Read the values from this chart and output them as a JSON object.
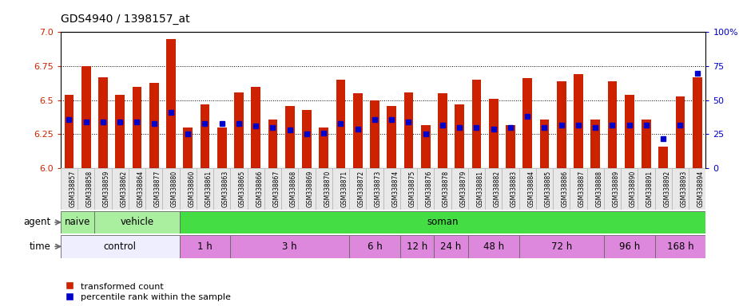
{
  "title": "GDS4940 / 1398157_at",
  "samples": [
    "GSM338857",
    "GSM338858",
    "GSM338859",
    "GSM338862",
    "GSM338864",
    "GSM338877",
    "GSM338880",
    "GSM338860",
    "GSM338861",
    "GSM338863",
    "GSM338865",
    "GSM338866",
    "GSM338867",
    "GSM338868",
    "GSM338869",
    "GSM338870",
    "GSM338871",
    "GSM338872",
    "GSM338873",
    "GSM338874",
    "GSM338875",
    "GSM338876",
    "GSM338878",
    "GSM338879",
    "GSM338881",
    "GSM338882",
    "GSM338883",
    "GSM338884",
    "GSM338885",
    "GSM338886",
    "GSM338887",
    "GSM338888",
    "GSM338889",
    "GSM338890",
    "GSM338891",
    "GSM338892",
    "GSM338893",
    "GSM338894"
  ],
  "transformed_count": [
    6.54,
    6.75,
    6.67,
    6.54,
    6.6,
    6.63,
    6.95,
    6.3,
    6.47,
    6.3,
    6.56,
    6.6,
    6.36,
    6.46,
    6.43,
    6.3,
    6.65,
    6.55,
    6.5,
    6.46,
    6.56,
    6.32,
    6.55,
    6.47,
    6.65,
    6.51,
    6.32,
    6.66,
    6.36,
    6.64,
    6.69,
    6.36,
    6.64,
    6.54,
    6.36,
    6.16,
    6.53,
    6.67
  ],
  "percentile_rank": [
    36,
    34,
    34,
    34,
    34,
    33,
    41,
    25,
    33,
    33,
    33,
    31,
    30,
    28,
    25,
    26,
    33,
    29,
    36,
    36,
    34,
    25,
    32,
    30,
    30,
    29,
    30,
    38,
    30,
    32,
    32,
    30,
    32,
    32,
    32,
    22,
    32,
    70
  ],
  "ylim_left": [
    6.0,
    7.0
  ],
  "ylim_right": [
    0,
    100
  ],
  "yticks_left": [
    6.0,
    6.25,
    6.5,
    6.75,
    7.0
  ],
  "yticks_right": [
    0,
    25,
    50,
    75,
    100
  ],
  "bar_color": "#cc2200",
  "marker_color": "#0000cc",
  "agent_groups": [
    {
      "label": "naive",
      "start": 0,
      "end": 2,
      "color": "#aaeea0"
    },
    {
      "label": "vehicle",
      "start": 2,
      "end": 7,
      "color": "#aaeea0"
    },
    {
      "label": "soman",
      "start": 7,
      "end": 38,
      "color": "#44dd44"
    }
  ],
  "time_groups": [
    {
      "label": "control",
      "start": 0,
      "end": 7,
      "color": "#eeeeff"
    },
    {
      "label": "1 h",
      "start": 7,
      "end": 10,
      "color": "#dd88dd"
    },
    {
      "label": "3 h",
      "start": 10,
      "end": 17,
      "color": "#dd88dd"
    },
    {
      "label": "6 h",
      "start": 17,
      "end": 20,
      "color": "#dd88dd"
    },
    {
      "label": "12 h",
      "start": 20,
      "end": 22,
      "color": "#dd88dd"
    },
    {
      "label": "24 h",
      "start": 22,
      "end": 24,
      "color": "#dd88dd"
    },
    {
      "label": "48 h",
      "start": 24,
      "end": 27,
      "color": "#dd88dd"
    },
    {
      "label": "72 h",
      "start": 27,
      "end": 32,
      "color": "#dd88dd"
    },
    {
      "label": "96 h",
      "start": 32,
      "end": 35,
      "color": "#dd88dd"
    },
    {
      "label": "168 h",
      "start": 35,
      "end": 38,
      "color": "#dd88dd"
    }
  ],
  "legend_red_label": "transformed count",
  "legend_blue_label": "percentile rank within the sample"
}
